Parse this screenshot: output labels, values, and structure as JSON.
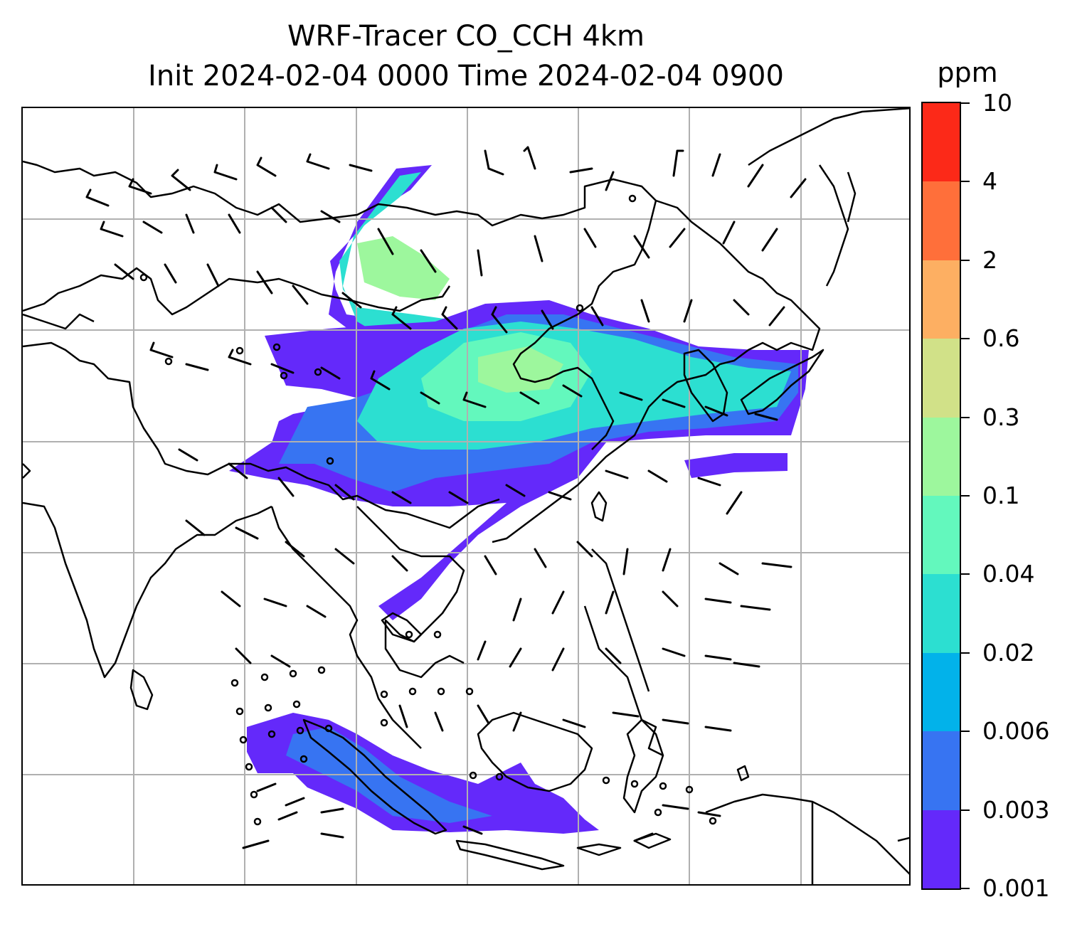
{
  "title": {
    "line1": "WRF-Tracer CO_CCH 4km",
    "line2": "Init 2024-02-04 0000 Time 2024-02-04 0900"
  },
  "colorbar": {
    "unit": "ppm",
    "levels": [
      "0.001",
      "0.003",
      "0.006",
      "0.02",
      "0.04",
      "0.1",
      "0.3",
      "0.6",
      "2",
      "4",
      "10"
    ],
    "colors": [
      "#6429fa",
      "#3774f2",
      "#02b2ea",
      "#2cdfd1",
      "#63f8bd",
      "#9df79d",
      "#d1e188",
      "#fdaf62",
      "#ff6f3a",
      "#fc2918"
    ]
  },
  "map": {
    "gridlines": true,
    "gridline_color": "#b0b0b0",
    "coastline_color": "#000000",
    "plume_regions": [
      "northern plume",
      "central plume",
      "eastern streak",
      "southern plume"
    ],
    "wind_barbs": true
  }
}
